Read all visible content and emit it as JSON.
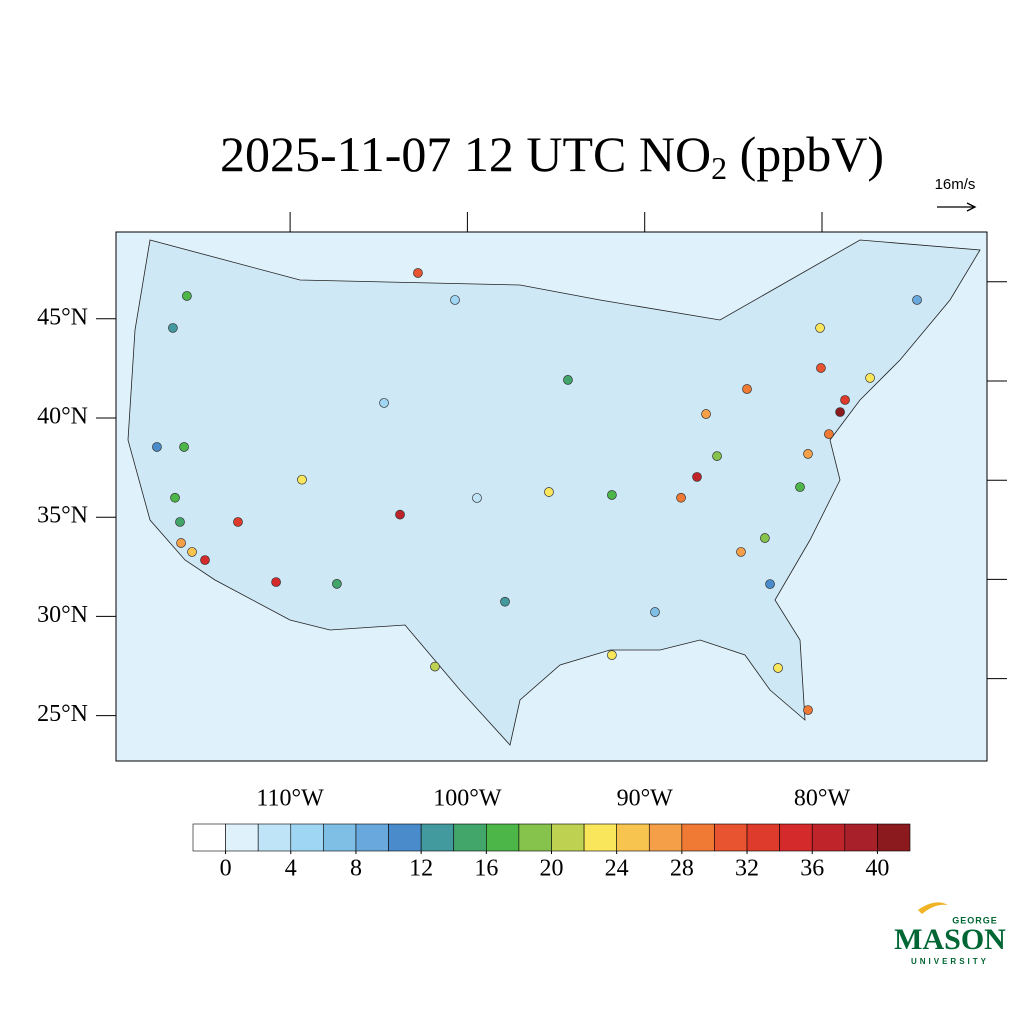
{
  "title": {
    "main": "2025-11-07 12 UTC NO",
    "sub": "2",
    "unit": " (ppbV)"
  },
  "reference_vector": "16m/s",
  "map": {
    "lon_ticks": [
      {
        "value": -110,
        "label": "110°W"
      },
      {
        "value": -100,
        "label": "100°W"
      },
      {
        "value": -90,
        "label": "90°W"
      },
      {
        "value": -80,
        "label": "80°W"
      }
    ],
    "lat_ticks": [
      {
        "value": 45,
        "label": "45°N"
      },
      {
        "value": 40,
        "label": "40°N"
      },
      {
        "value": 35,
        "label": "35°N"
      },
      {
        "value": 30,
        "label": "30°N"
      },
      {
        "value": 25,
        "label": "25°N"
      }
    ],
    "stations": [
      {
        "lon": -115.82,
        "lat": 46.15,
        "value": 16
      },
      {
        "lon": -116.61,
        "lat": 44.54,
        "value": 12
      },
      {
        "lon": -102.79,
        "lat": 47.31,
        "value": 30
      },
      {
        "lon": -117.51,
        "lat": 38.54,
        "value": 10
      },
      {
        "lon": -115.98,
        "lat": 38.54,
        "value": 16
      },
      {
        "lon": -116.49,
        "lat": 35.98,
        "value": 16
      },
      {
        "lon": -116.21,
        "lat": 34.76,
        "value": 14
      },
      {
        "lon": -116.15,
        "lat": 33.7,
        "value": 26
      },
      {
        "lon": -115.53,
        "lat": 33.25,
        "value": 24
      },
      {
        "lon": -114.8,
        "lat": 32.84,
        "value": 34
      },
      {
        "lon": -112.94,
        "lat": 34.76,
        "value": 32
      },
      {
        "lon": -110.79,
        "lat": 31.73,
        "value": 34
      },
      {
        "lon": -109.33,
        "lat": 36.89,
        "value": 22
      },
      {
        "lon": -103.8,
        "lat": 35.13,
        "value": 36
      },
      {
        "lon": -107.36,
        "lat": 31.64,
        "value": 14
      },
      {
        "lon": -101.83,
        "lat": 27.47,
        "value": 20
      },
      {
        "lon": -97.88,
        "lat": 30.74,
        "value": 12
      },
      {
        "lon": -95.4,
        "lat": 36.27,
        "value": 22
      },
      {
        "lon": -91.85,
        "lat": 36.12,
        "value": 16
      },
      {
        "lon": -87.05,
        "lat": 37.03,
        "value": 36
      },
      {
        "lon": -87.95,
        "lat": 35.98,
        "value": 28
      },
      {
        "lon": -85.92,
        "lat": 38.08,
        "value": 18
      },
      {
        "lon": -86.54,
        "lat": 40.2,
        "value": 26
      },
      {
        "lon": -84.23,
        "lat": 41.46,
        "value": 28
      },
      {
        "lon": -78.98,
        "lat": 40.3,
        "value": 40
      },
      {
        "lon": -78.7,
        "lat": 40.91,
        "value": 32
      },
      {
        "lon": -79.61,
        "lat": 39.19,
        "value": 28
      },
      {
        "lon": -80.06,
        "lat": 42.52,
        "value": 30
      },
      {
        "lon": -77.29,
        "lat": 42.02,
        "value": 22
      },
      {
        "lon": -80.11,
        "lat": 44.54,
        "value": 22
      },
      {
        "lon": -80.79,
        "lat": 38.19,
        "value": 26
      },
      {
        "lon": -84.57,
        "lat": 33.25,
        "value": 26
      },
      {
        "lon": -83.22,
        "lat": 33.95,
        "value": 18
      },
      {
        "lon": -81.24,
        "lat": 36.52,
        "value": 16
      },
      {
        "lon": -82.48,
        "lat": 27.4,
        "value": 22
      },
      {
        "lon": -80.79,
        "lat": 25.28,
        "value": 28
      },
      {
        "lon": -91.85,
        "lat": 28.05,
        "value": 22
      },
      {
        "lon": -89.42,
        "lat": 30.22,
        "value": 6
      },
      {
        "lon": -100.7,
        "lat": 45.95,
        "value": 4
      },
      {
        "lon": -104.7,
        "lat": 40.76,
        "value": 4
      },
      {
        "lon": -99.46,
        "lat": 35.97,
        "value": 2
      },
      {
        "lon": -82.93,
        "lat": 31.63,
        "value": 10
      },
      {
        "lon": -74.64,
        "lat": 45.95,
        "value": 8
      },
      {
        "lon": -94.33,
        "lat": 41.92,
        "value": 14
      }
    ]
  },
  "colorbar": {
    "lim": [
      -2,
      42
    ],
    "ticks": [
      0,
      4,
      8,
      12,
      16,
      20,
      24,
      28,
      32,
      36,
      40
    ],
    "colors": [
      "#ffffff",
      "#dff1fb",
      "#bfe4f7",
      "#9fd6f3",
      "#7fbfe6",
      "#68a8dc",
      "#4a8ccb",
      "#439a9e",
      "#42a56a",
      "#4cb649",
      "#86c34c",
      "#bfd150",
      "#f9e65a",
      "#f8c450",
      "#f5a048",
      "#f07933",
      "#e85330",
      "#df3b2c",
      "#d52a2b",
      "#c0242b",
      "#a8202a",
      "#8b1a1f"
    ]
  },
  "logo": {
    "top": "GEORGE",
    "name": "MASON",
    "bottom": "UNIVERSITY"
  }
}
